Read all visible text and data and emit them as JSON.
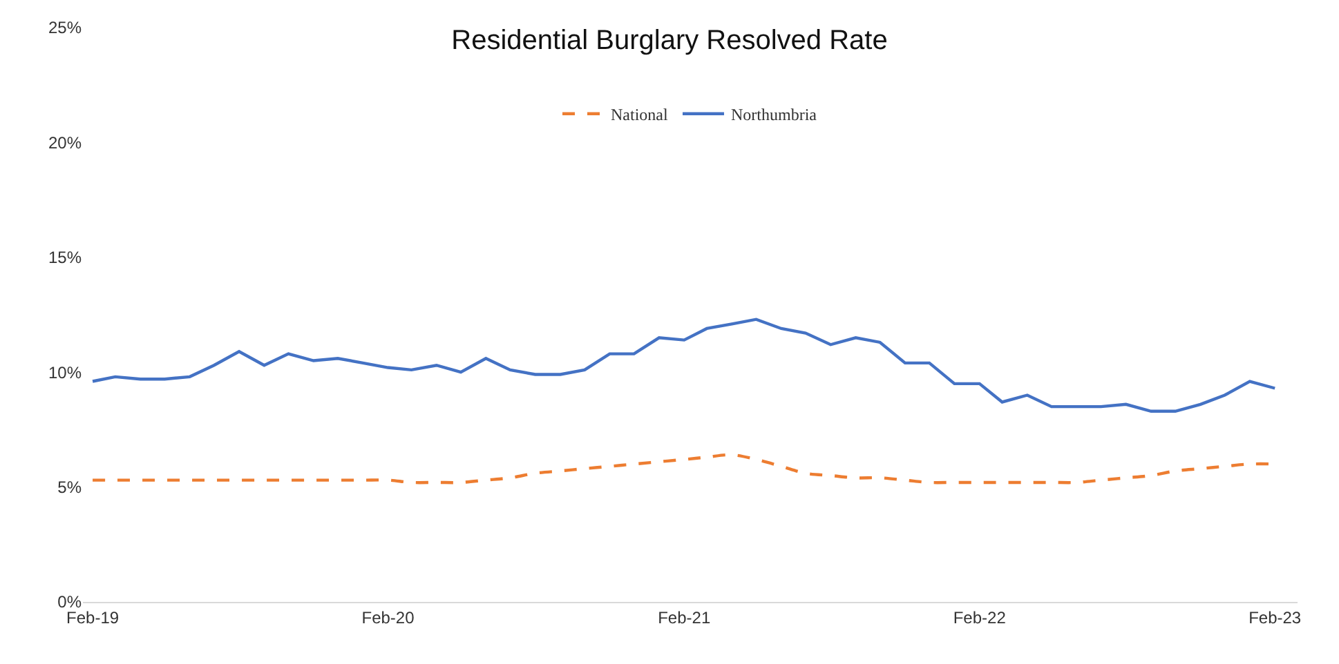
{
  "chart_data": {
    "type": "line",
    "title": "Residential Burglary Resolved Rate",
    "x": [
      "2019-02",
      "2019-03",
      "2019-04",
      "2019-05",
      "2019-06",
      "2019-07",
      "2019-08",
      "2019-09",
      "2019-10",
      "2019-11",
      "2019-12",
      "2020-01",
      "2020-02",
      "2020-03",
      "2020-04",
      "2020-05",
      "2020-06",
      "2020-07",
      "2020-08",
      "2020-09",
      "2020-10",
      "2020-11",
      "2020-12",
      "2021-01",
      "2021-02",
      "2021-03",
      "2021-04",
      "2021-05",
      "2021-06",
      "2021-07",
      "2021-08",
      "2021-09",
      "2021-10",
      "2021-11",
      "2021-12",
      "2022-01",
      "2022-02",
      "2022-03",
      "2022-04",
      "2022-05",
      "2022-06",
      "2022-07",
      "2022-08",
      "2022-09",
      "2022-10",
      "2022-11",
      "2022-12",
      "2023-01",
      "2023-02"
    ],
    "series": [
      {
        "name": "National",
        "color": "#ed7d31",
        "line_style": "dashed",
        "values": [
          5.3,
          5.3,
          5.3,
          5.3,
          5.3,
          5.3,
          5.3,
          5.3,
          5.3,
          5.3,
          5.3,
          5.3,
          5.3,
          5.2,
          5.2,
          5.2,
          5.3,
          5.4,
          5.6,
          5.7,
          5.8,
          5.9,
          6.0,
          6.1,
          6.2,
          6.3,
          6.4,
          6.2,
          5.9,
          5.6,
          5.5,
          5.4,
          5.4,
          5.3,
          5.2,
          5.2,
          5.2,
          5.2,
          5.2,
          5.2,
          5.2,
          5.3,
          5.4,
          5.5,
          5.7,
          5.8,
          5.9,
          6.0,
          6.0
        ]
      },
      {
        "name": "Northumbria",
        "color": "#4472c4",
        "line_style": "solid",
        "values": [
          9.6,
          9.8,
          9.7,
          9.7,
          9.8,
          10.3,
          10.9,
          10.3,
          10.8,
          10.5,
          10.6,
          10.4,
          10.2,
          10.1,
          10.3,
          10.0,
          10.6,
          10.1,
          9.9,
          9.9,
          10.1,
          10.8,
          10.8,
          11.5,
          11.4,
          11.9,
          12.1,
          12.3,
          11.9,
          11.7,
          11.2,
          11.5,
          11.3,
          10.4,
          10.4,
          9.5,
          9.5,
          8.7,
          9.0,
          8.5,
          8.5,
          8.5,
          8.6,
          8.3,
          8.3,
          8.6,
          9.0,
          9.6,
          9.3
        ]
      }
    ],
    "xlim": [
      "2019-01-20",
      "2023-03-01"
    ],
    "xticks": [
      {
        "value": "2019-02",
        "label": "Feb-19"
      },
      {
        "value": "2020-02",
        "label": "Feb-20"
      },
      {
        "value": "2021-02",
        "label": "Feb-21"
      },
      {
        "value": "2022-02",
        "label": "Feb-22"
      },
      {
        "value": "2023-02",
        "label": "Feb-23"
      }
    ],
    "ylim": [
      0,
      25
    ],
    "yticks": [
      {
        "value": 0,
        "label": "0%"
      },
      {
        "value": 5,
        "label": "5%"
      },
      {
        "value": 10,
        "label": "10%"
      },
      {
        "value": 15,
        "label": "15%"
      },
      {
        "value": 20,
        "label": "20%"
      },
      {
        "value": 25,
        "label": "25%"
      }
    ],
    "grid": false,
    "legend": "top",
    "marker": "none"
  }
}
